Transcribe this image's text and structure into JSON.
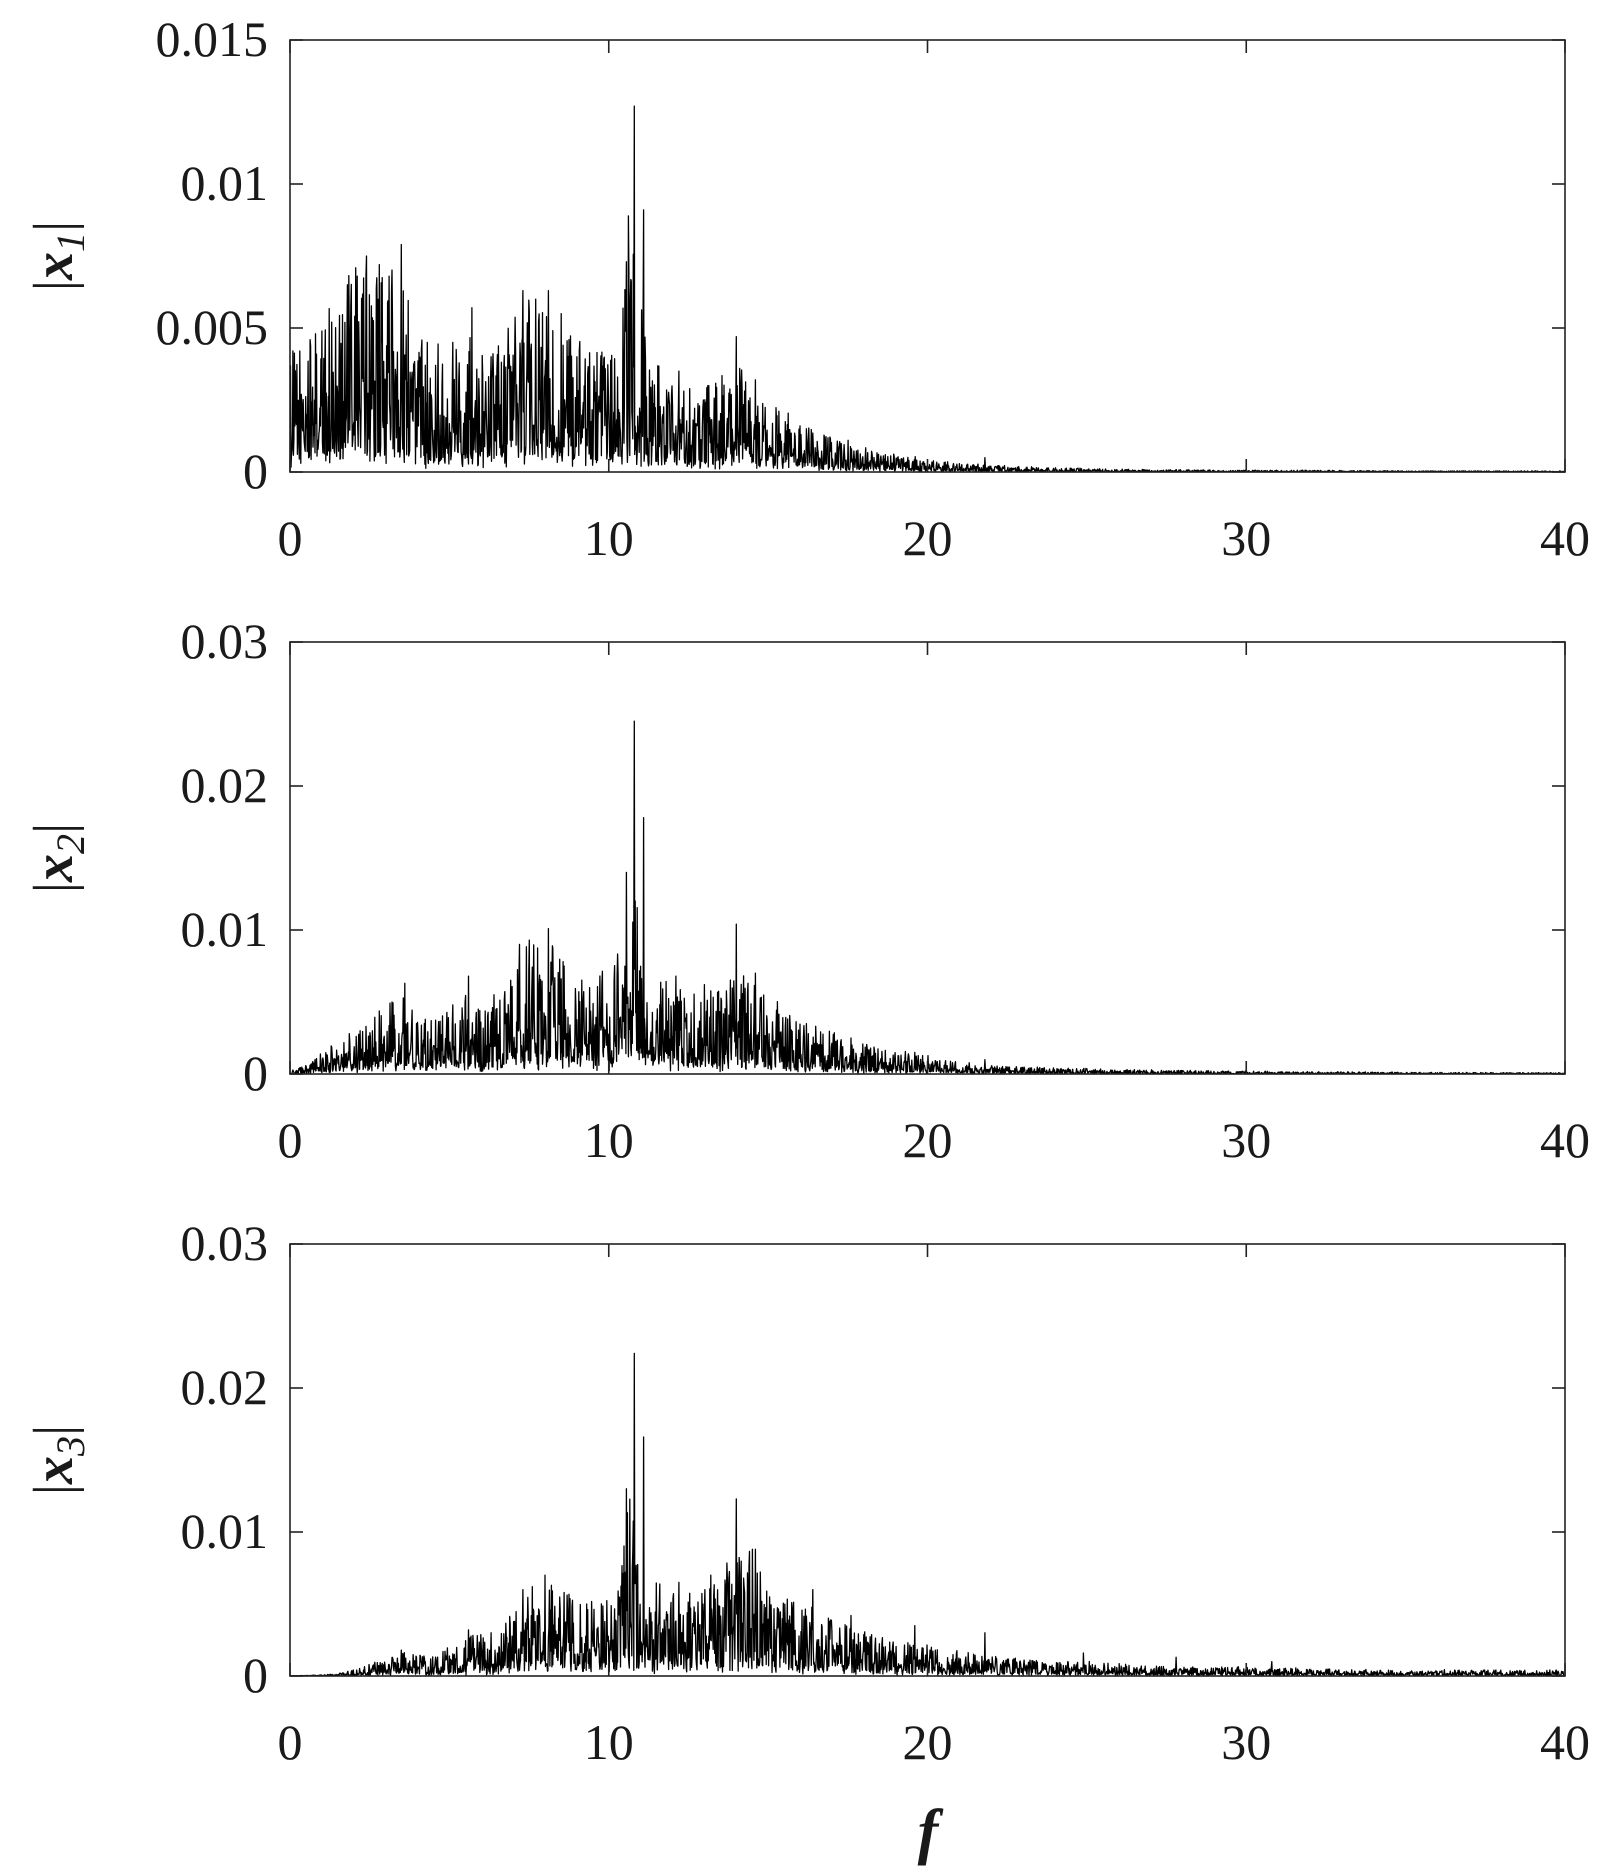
{
  "chart_data": [
    {
      "type": "line",
      "ylabel_parts": {
        "bar_left": "|",
        "var": "x",
        "sub": "1",
        "bar_right": "|"
      },
      "xlim": [
        0,
        40
      ],
      "ylim": [
        0,
        0.015
      ],
      "xticks": [
        0,
        10,
        20,
        30,
        40
      ],
      "xtick_labels": [
        "0",
        "10",
        "20",
        "30",
        "40"
      ],
      "yticks": [
        0,
        0.005,
        0.01,
        0.015
      ],
      "ytick_labels": [
        "0",
        "0.005",
        "0.01",
        "0.015"
      ],
      "grid": false,
      "series": [
        {
          "envelope_x": [
            0,
            0.5,
            1,
            1.5,
            2,
            2.5,
            3,
            3.5,
            4,
            4.5,
            5,
            5.5,
            6,
            6.5,
            7,
            7.5,
            8,
            8.5,
            9,
            9.5,
            10,
            10.3,
            10.6,
            10.8,
            11,
            11.3,
            11.6,
            12,
            12.5,
            13,
            13.5,
            14,
            14.5,
            15,
            16,
            17,
            18,
            19,
            20,
            21,
            22,
            23,
            24,
            25,
            26,
            28,
            30,
            32,
            35,
            38,
            40
          ],
          "envelope_y": [
            0.002,
            0.0022,
            0.0025,
            0.003,
            0.0035,
            0.0036,
            0.0034,
            0.0035,
            0.0025,
            0.0022,
            0.0024,
            0.0026,
            0.0022,
            0.0021,
            0.0027,
            0.003,
            0.0029,
            0.0026,
            0.0022,
            0.002,
            0.002,
            0.0023,
            0.0042,
            0.0038,
            0.0028,
            0.0022,
            0.0018,
            0.0015,
            0.0014,
            0.0014,
            0.0016,
            0.0017,
            0.0017,
            0.0012,
            0.0008,
            0.0006,
            0.0004,
            0.0003,
            0.00022,
            0.00016,
            0.00012,
            9e-05,
            7e-05,
            6e-05,
            5e-05,
            4e-05,
            3e-05,
            3e-05,
            2e-05,
            2e-05,
            2e-05
          ],
          "peaks": [
            {
              "x": 0.3,
              "y": 0.0042
            },
            {
              "x": 0.8,
              "y": 0.0048
            },
            {
              "x": 1.3,
              "y": 0.0052
            },
            {
              "x": 1.8,
              "y": 0.0065
            },
            {
              "x": 2.1,
              "y": 0.0068
            },
            {
              "x": 2.4,
              "y": 0.0075
            },
            {
              "x": 2.8,
              "y": 0.0072
            },
            {
              "x": 3.1,
              "y": 0.0068
            },
            {
              "x": 3.5,
              "y": 0.0079
            },
            {
              "x": 4.3,
              "y": 0.0045
            },
            {
              "x": 5.1,
              "y": 0.0045
            },
            {
              "x": 5.7,
              "y": 0.0057
            },
            {
              "x": 6.3,
              "y": 0.004
            },
            {
              "x": 7.3,
              "y": 0.0063
            },
            {
              "x": 7.7,
              "y": 0.006
            },
            {
              "x": 8.1,
              "y": 0.0063
            },
            {
              "x": 8.5,
              "y": 0.0055
            },
            {
              "x": 9.0,
              "y": 0.004
            },
            {
              "x": 10.55,
              "y": 0.0073
            },
            {
              "x": 10.8,
              "y": 0.0127
            },
            {
              "x": 11.1,
              "y": 0.0091
            },
            {
              "x": 12.2,
              "y": 0.0035
            },
            {
              "x": 13.1,
              "y": 0.003
            },
            {
              "x": 14.0,
              "y": 0.0047
            },
            {
              "x": 14.6,
              "y": 0.0032
            },
            {
              "x": 16.0,
              "y": 0.0016
            },
            {
              "x": 17.5,
              "y": 0.0011
            },
            {
              "x": 21.8,
              "y": 0.0005
            }
          ]
        }
      ]
    },
    {
      "type": "line",
      "ylabel_parts": {
        "bar_left": "|",
        "var": "x",
        "sub": "2",
        "bar_right": "|"
      },
      "xlim": [
        0,
        40
      ],
      "ylim": [
        0,
        0.03
      ],
      "xticks": [
        0,
        10,
        20,
        30,
        40
      ],
      "xtick_labels": [
        "0",
        "10",
        "20",
        "30",
        "40"
      ],
      "yticks": [
        0,
        0.01,
        0.02,
        0.03
      ],
      "ytick_labels": [
        "0",
        "0.01",
        "0.02",
        "0.03"
      ],
      "grid": false,
      "series": [
        {
          "envelope_x": [
            0,
            0.5,
            1,
            1.5,
            2,
            2.5,
            3,
            3.5,
            4,
            4.5,
            5,
            5.5,
            6,
            6.5,
            7,
            7.5,
            8,
            8.5,
            9,
            9.5,
            10,
            10.3,
            10.6,
            10.8,
            11,
            11.3,
            11.6,
            12,
            12.5,
            13,
            13.5,
            14,
            14.5,
            15,
            16,
            17,
            18,
            19,
            20,
            21,
            22,
            23,
            24,
            25,
            26,
            28,
            30,
            32,
            35,
            38,
            40
          ],
          "envelope_y": [
            0.0001,
            0.0003,
            0.0008,
            0.0012,
            0.0015,
            0.0018,
            0.0022,
            0.0026,
            0.0022,
            0.0018,
            0.0022,
            0.0026,
            0.0024,
            0.0026,
            0.0036,
            0.0045,
            0.0045,
            0.004,
            0.0035,
            0.0034,
            0.0035,
            0.0042,
            0.007,
            0.0065,
            0.0045,
            0.0038,
            0.0034,
            0.003,
            0.0028,
            0.0028,
            0.003,
            0.0032,
            0.0034,
            0.0025,
            0.0018,
            0.0014,
            0.001,
            0.0008,
            0.0006,
            0.0004,
            0.0003,
            0.00025,
            0.0002,
            0.00018,
            0.00015,
            0.00012,
            0.0001,
            8e-05,
            6e-05,
            5e-05,
            5e-05
          ],
          "peaks": [
            {
              "x": 2.2,
              "y": 0.003
            },
            {
              "x": 3.2,
              "y": 0.005
            },
            {
              "x": 3.6,
              "y": 0.0063
            },
            {
              "x": 5.1,
              "y": 0.0048
            },
            {
              "x": 5.6,
              "y": 0.0068
            },
            {
              "x": 6.4,
              "y": 0.0055
            },
            {
              "x": 7.2,
              "y": 0.009
            },
            {
              "x": 7.5,
              "y": 0.0093
            },
            {
              "x": 8.1,
              "y": 0.0101
            },
            {
              "x": 8.6,
              "y": 0.0075
            },
            {
              "x": 9.4,
              "y": 0.006
            },
            {
              "x": 10.55,
              "y": 0.014
            },
            {
              "x": 10.8,
              "y": 0.0245
            },
            {
              "x": 11.1,
              "y": 0.0178
            },
            {
              "x": 12.1,
              "y": 0.0068
            },
            {
              "x": 13.0,
              "y": 0.0062
            },
            {
              "x": 14.0,
              "y": 0.0104
            },
            {
              "x": 14.6,
              "y": 0.007
            },
            {
              "x": 16.2,
              "y": 0.0035
            },
            {
              "x": 17.6,
              "y": 0.0025
            },
            {
              "x": 19.6,
              "y": 0.0015
            },
            {
              "x": 21.8,
              "y": 0.001
            }
          ]
        }
      ]
    },
    {
      "type": "line",
      "ylabel_parts": {
        "bar_left": "|",
        "var": "x",
        "sub": "3",
        "bar_right": "|"
      },
      "xlim": [
        0,
        40
      ],
      "ylim": [
        0,
        0.03
      ],
      "xticks": [
        0,
        10,
        20,
        30,
        40
      ],
      "xtick_labels": [
        "0",
        "10",
        "20",
        "30",
        "40"
      ],
      "yticks": [
        0,
        0.01,
        0.02,
        0.03
      ],
      "ytick_labels": [
        "0",
        "0.01",
        "0.02",
        "0.03"
      ],
      "xlabel": "f",
      "grid": false,
      "series": [
        {
          "envelope_x": [
            0,
            0.5,
            1,
            1.5,
            2,
            2.5,
            3,
            3.5,
            4,
            4.5,
            5,
            5.5,
            6,
            6.5,
            7,
            7.5,
            8,
            8.5,
            9,
            9.5,
            10,
            10.3,
            10.6,
            10.8,
            11,
            11.3,
            11.6,
            12,
            12.5,
            13,
            13.5,
            14,
            14.5,
            15,
            16,
            17,
            18,
            19,
            20,
            21,
            22,
            23,
            24,
            25,
            26,
            28,
            30,
            32,
            35,
            38,
            40
          ],
          "envelope_y": [
            1e-05,
            2e-05,
            5e-05,
            0.0001,
            0.0002,
            0.0004,
            0.0006,
            0.0008,
            0.0007,
            0.0007,
            0.001,
            0.0013,
            0.0014,
            0.0015,
            0.0022,
            0.003,
            0.0032,
            0.0028,
            0.0026,
            0.0026,
            0.0028,
            0.0035,
            0.006,
            0.0058,
            0.004,
            0.0032,
            0.003,
            0.0028,
            0.0027,
            0.003,
            0.0036,
            0.004,
            0.0042,
            0.0032,
            0.0025,
            0.002,
            0.0015,
            0.0012,
            0.001,
            0.0008,
            0.0007,
            0.0006,
            0.0005,
            0.0005,
            0.0004,
            0.0003,
            0.0003,
            0.00025,
            0.0002,
            0.0002,
            0.0002
          ],
          "peaks": [
            {
              "x": 3.5,
              "y": 0.0018
            },
            {
              "x": 5.6,
              "y": 0.0032
            },
            {
              "x": 6.3,
              "y": 0.003
            },
            {
              "x": 7.3,
              "y": 0.006
            },
            {
              "x": 7.6,
              "y": 0.0062
            },
            {
              "x": 8.0,
              "y": 0.007
            },
            {
              "x": 8.6,
              "y": 0.0058
            },
            {
              "x": 9.3,
              "y": 0.005
            },
            {
              "x": 10.55,
              "y": 0.013
            },
            {
              "x": 10.8,
              "y": 0.0224
            },
            {
              "x": 11.1,
              "y": 0.0166
            },
            {
              "x": 12.2,
              "y": 0.0065
            },
            {
              "x": 13.2,
              "y": 0.007
            },
            {
              "x": 14.0,
              "y": 0.0123
            },
            {
              "x": 14.6,
              "y": 0.0088
            },
            {
              "x": 16.4,
              "y": 0.006
            },
            {
              "x": 17.6,
              "y": 0.0042
            },
            {
              "x": 19.6,
              "y": 0.0035
            },
            {
              "x": 21.8,
              "y": 0.003
            },
            {
              "x": 24.9,
              "y": 0.0016
            },
            {
              "x": 27.8,
              "y": 0.0013
            },
            {
              "x": 30.8,
              "y": 0.001
            }
          ]
        }
      ]
    }
  ]
}
